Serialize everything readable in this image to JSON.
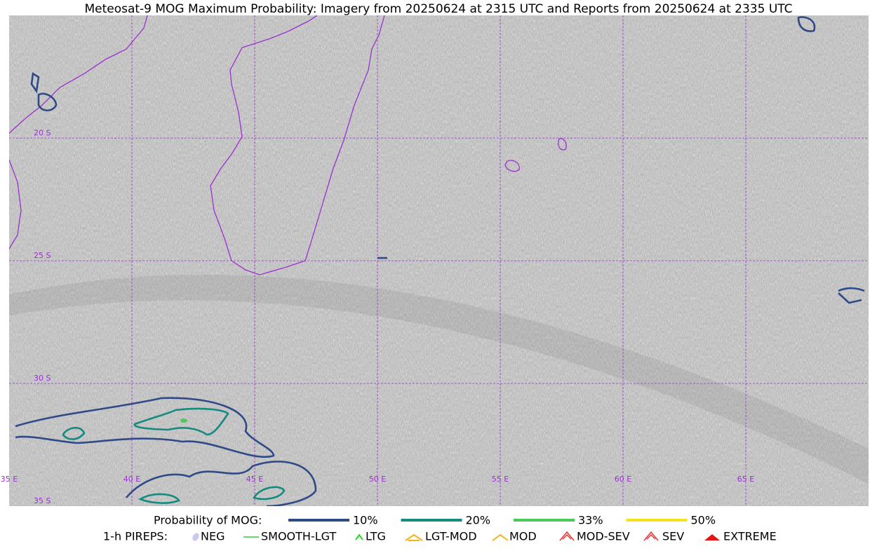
{
  "title": "Meteosat-9 MOG Maximum Probability: Imagery from 20250624 at 2315 UTC and Reports from 20250624 at 2335 UTC",
  "map": {
    "lat_labels": [
      "20 S",
      "25 S",
      "30 S",
      "35 S"
    ],
    "lon_labels": [
      "35 E",
      "40 E",
      "45 E",
      "50 E",
      "55 E",
      "60 E",
      "65 E"
    ]
  },
  "legend": {
    "mog": {
      "label": "Probability of MOG:",
      "entries": [
        {
          "label": "10%",
          "color": "#2e4a87"
        },
        {
          "label": "20%",
          "color": "#148a80"
        },
        {
          "label": "33%",
          "color": "#4cc85a"
        },
        {
          "label": "50%",
          "color": "#f7e11a"
        }
      ]
    },
    "pireps": {
      "label": "1-h PIREPS:",
      "entries": [
        {
          "label": "NEG",
          "color": "#c8c8f0"
        },
        {
          "label": "SMOOTH-LGT",
          "color": "#3ccc3c"
        },
        {
          "label": "LTG",
          "color": "#22dd22"
        },
        {
          "label": "LGT-MOD",
          "color": "#f5b21a"
        },
        {
          "label": "MOD",
          "color": "#f5b21a"
        },
        {
          "label": "MOD-SEV",
          "color": "#e63232"
        },
        {
          "label": "SEV",
          "color": "#e63232"
        },
        {
          "label": "EXTREME",
          "color": "#e61414"
        }
      ]
    }
  }
}
